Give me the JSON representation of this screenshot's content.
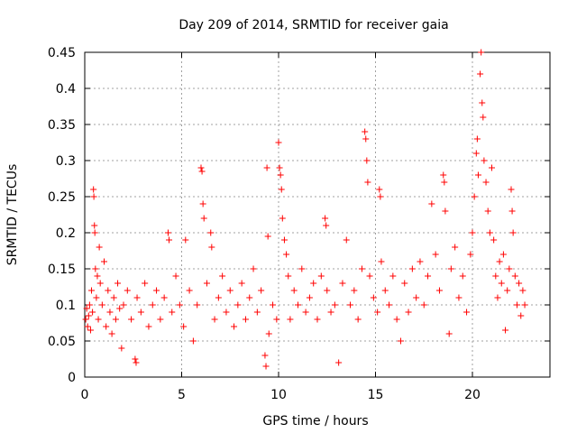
{
  "chart_data": {
    "type": "scatter",
    "title": "Day 209 of 2014, SRMTID for receiver gaia",
    "xlabel": "GPS time / hours",
    "ylabel": "SRMTID / TECUs",
    "xlim": [
      0,
      24
    ],
    "ylim": [
      0,
      0.45
    ],
    "x_ticks": [
      0,
      5,
      10,
      15,
      20
    ],
    "y_ticks": [
      0,
      0.05,
      0.1,
      0.15,
      0.2,
      0.25,
      0.3,
      0.35,
      0.4,
      0.45
    ],
    "x_tick_labels": [
      "0",
      "5",
      "10",
      "15",
      "20"
    ],
    "y_tick_labels": [
      "0",
      "0.05",
      "0.1",
      "0.15",
      "0.2",
      "0.25",
      "0.3",
      "0.35",
      "0.4",
      "0.45"
    ],
    "grid": true,
    "marker": "+",
    "color": "#ff0000",
    "series": [
      {
        "name": "SRMTID",
        "points": [
          [
            0.05,
            0.08
          ],
          [
            0.1,
            0.095
          ],
          [
            0.15,
            0.07
          ],
          [
            0.2,
            0.085
          ],
          [
            0.25,
            0.1
          ],
          [
            0.3,
            0.065
          ],
          [
            0.35,
            0.12
          ],
          [
            0.4,
            0.09
          ],
          [
            0.45,
            0.26
          ],
          [
            0.47,
            0.25
          ],
          [
            0.5,
            0.21
          ],
          [
            0.52,
            0.2
          ],
          [
            0.55,
            0.15
          ],
          [
            0.6,
            0.11
          ],
          [
            0.65,
            0.14
          ],
          [
            0.7,
            0.08
          ],
          [
            0.75,
            0.18
          ],
          [
            0.8,
            0.13
          ],
          [
            0.9,
            0.1
          ],
          [
            1.0,
            0.16
          ],
          [
            1.1,
            0.07
          ],
          [
            1.2,
            0.12
          ],
          [
            1.3,
            0.09
          ],
          [
            1.4,
            0.06
          ],
          [
            1.5,
            0.11
          ],
          [
            1.6,
            0.08
          ],
          [
            1.7,
            0.13
          ],
          [
            1.8,
            0.095
          ],
          [
            1.9,
            0.04
          ],
          [
            2.0,
            0.1
          ],
          [
            2.2,
            0.12
          ],
          [
            2.4,
            0.08
          ],
          [
            2.6,
            0.025
          ],
          [
            2.65,
            0.02
          ],
          [
            2.7,
            0.11
          ],
          [
            2.9,
            0.09
          ],
          [
            3.1,
            0.13
          ],
          [
            3.3,
            0.07
          ],
          [
            3.5,
            0.1
          ],
          [
            3.7,
            0.12
          ],
          [
            3.9,
            0.08
          ],
          [
            4.1,
            0.11
          ],
          [
            4.3,
            0.2
          ],
          [
            4.35,
            0.19
          ],
          [
            4.5,
            0.09
          ],
          [
            4.7,
            0.14
          ],
          [
            4.9,
            0.1
          ],
          [
            5.1,
            0.07
          ],
          [
            5.2,
            0.19
          ],
          [
            5.4,
            0.12
          ],
          [
            5.6,
            0.05
          ],
          [
            5.8,
            0.1
          ],
          [
            6.0,
            0.29
          ],
          [
            6.05,
            0.285
          ],
          [
            6.1,
            0.24
          ],
          [
            6.15,
            0.22
          ],
          [
            6.3,
            0.13
          ],
          [
            6.5,
            0.2
          ],
          [
            6.55,
            0.18
          ],
          [
            6.7,
            0.08
          ],
          [
            6.9,
            0.11
          ],
          [
            7.1,
            0.14
          ],
          [
            7.3,
            0.09
          ],
          [
            7.5,
            0.12
          ],
          [
            7.7,
            0.07
          ],
          [
            7.9,
            0.1
          ],
          [
            8.1,
            0.13
          ],
          [
            8.3,
            0.08
          ],
          [
            8.5,
            0.11
          ],
          [
            8.7,
            0.15
          ],
          [
            8.9,
            0.09
          ],
          [
            9.1,
            0.12
          ],
          [
            9.3,
            0.03
          ],
          [
            9.35,
            0.015
          ],
          [
            9.4,
            0.29
          ],
          [
            9.45,
            0.195
          ],
          [
            9.5,
            0.06
          ],
          [
            9.7,
            0.1
          ],
          [
            9.9,
            0.08
          ],
          [
            10.0,
            0.325
          ],
          [
            10.05,
            0.29
          ],
          [
            10.1,
            0.28
          ],
          [
            10.15,
            0.26
          ],
          [
            10.2,
            0.22
          ],
          [
            10.3,
            0.19
          ],
          [
            10.4,
            0.17
          ],
          [
            10.5,
            0.14
          ],
          [
            10.6,
            0.08
          ],
          [
            10.8,
            0.12
          ],
          [
            11.0,
            0.1
          ],
          [
            11.2,
            0.15
          ],
          [
            11.4,
            0.09
          ],
          [
            11.6,
            0.11
          ],
          [
            11.8,
            0.13
          ],
          [
            12.0,
            0.08
          ],
          [
            12.2,
            0.14
          ],
          [
            12.4,
            0.22
          ],
          [
            12.45,
            0.21
          ],
          [
            12.5,
            0.12
          ],
          [
            12.7,
            0.09
          ],
          [
            12.9,
            0.1
          ],
          [
            13.1,
            0.02
          ],
          [
            13.3,
            0.13
          ],
          [
            13.5,
            0.19
          ],
          [
            13.7,
            0.1
          ],
          [
            13.9,
            0.12
          ],
          [
            14.1,
            0.08
          ],
          [
            14.3,
            0.15
          ],
          [
            14.45,
            0.34
          ],
          [
            14.5,
            0.33
          ],
          [
            14.55,
            0.3
          ],
          [
            14.6,
            0.27
          ],
          [
            14.7,
            0.14
          ],
          [
            14.9,
            0.11
          ],
          [
            15.1,
            0.09
          ],
          [
            15.2,
            0.26
          ],
          [
            15.25,
            0.25
          ],
          [
            15.3,
            0.16
          ],
          [
            15.5,
            0.12
          ],
          [
            15.7,
            0.1
          ],
          [
            15.9,
            0.14
          ],
          [
            16.1,
            0.08
          ],
          [
            16.3,
            0.05
          ],
          [
            16.5,
            0.13
          ],
          [
            16.7,
            0.09
          ],
          [
            16.9,
            0.15
          ],
          [
            17.1,
            0.11
          ],
          [
            17.3,
            0.16
          ],
          [
            17.5,
            0.1
          ],
          [
            17.7,
            0.14
          ],
          [
            17.9,
            0.24
          ],
          [
            18.1,
            0.17
          ],
          [
            18.3,
            0.12
          ],
          [
            18.5,
            0.28
          ],
          [
            18.55,
            0.27
          ],
          [
            18.6,
            0.23
          ],
          [
            18.8,
            0.06
          ],
          [
            18.9,
            0.15
          ],
          [
            19.1,
            0.18
          ],
          [
            19.3,
            0.11
          ],
          [
            19.5,
            0.14
          ],
          [
            19.7,
            0.09
          ],
          [
            19.9,
            0.17
          ],
          [
            20.0,
            0.2
          ],
          [
            20.1,
            0.25
          ],
          [
            20.2,
            0.31
          ],
          [
            20.25,
            0.33
          ],
          [
            20.3,
            0.28
          ],
          [
            20.4,
            0.42
          ],
          [
            20.45,
            0.45
          ],
          [
            20.5,
            0.38
          ],
          [
            20.55,
            0.36
          ],
          [
            20.6,
            0.3
          ],
          [
            20.7,
            0.27
          ],
          [
            20.8,
            0.23
          ],
          [
            20.9,
            0.2
          ],
          [
            21.0,
            0.29
          ],
          [
            21.1,
            0.19
          ],
          [
            21.2,
            0.14
          ],
          [
            21.3,
            0.11
          ],
          [
            21.4,
            0.16
          ],
          [
            21.5,
            0.13
          ],
          [
            21.6,
            0.17
          ],
          [
            21.7,
            0.065
          ],
          [
            21.8,
            0.12
          ],
          [
            21.9,
            0.15
          ],
          [
            22.0,
            0.26
          ],
          [
            22.05,
            0.23
          ],
          [
            22.1,
            0.2
          ],
          [
            22.2,
            0.14
          ],
          [
            22.3,
            0.1
          ],
          [
            22.4,
            0.13
          ],
          [
            22.5,
            0.085
          ],
          [
            22.6,
            0.12
          ],
          [
            22.7,
            0.1
          ]
        ]
      }
    ]
  }
}
